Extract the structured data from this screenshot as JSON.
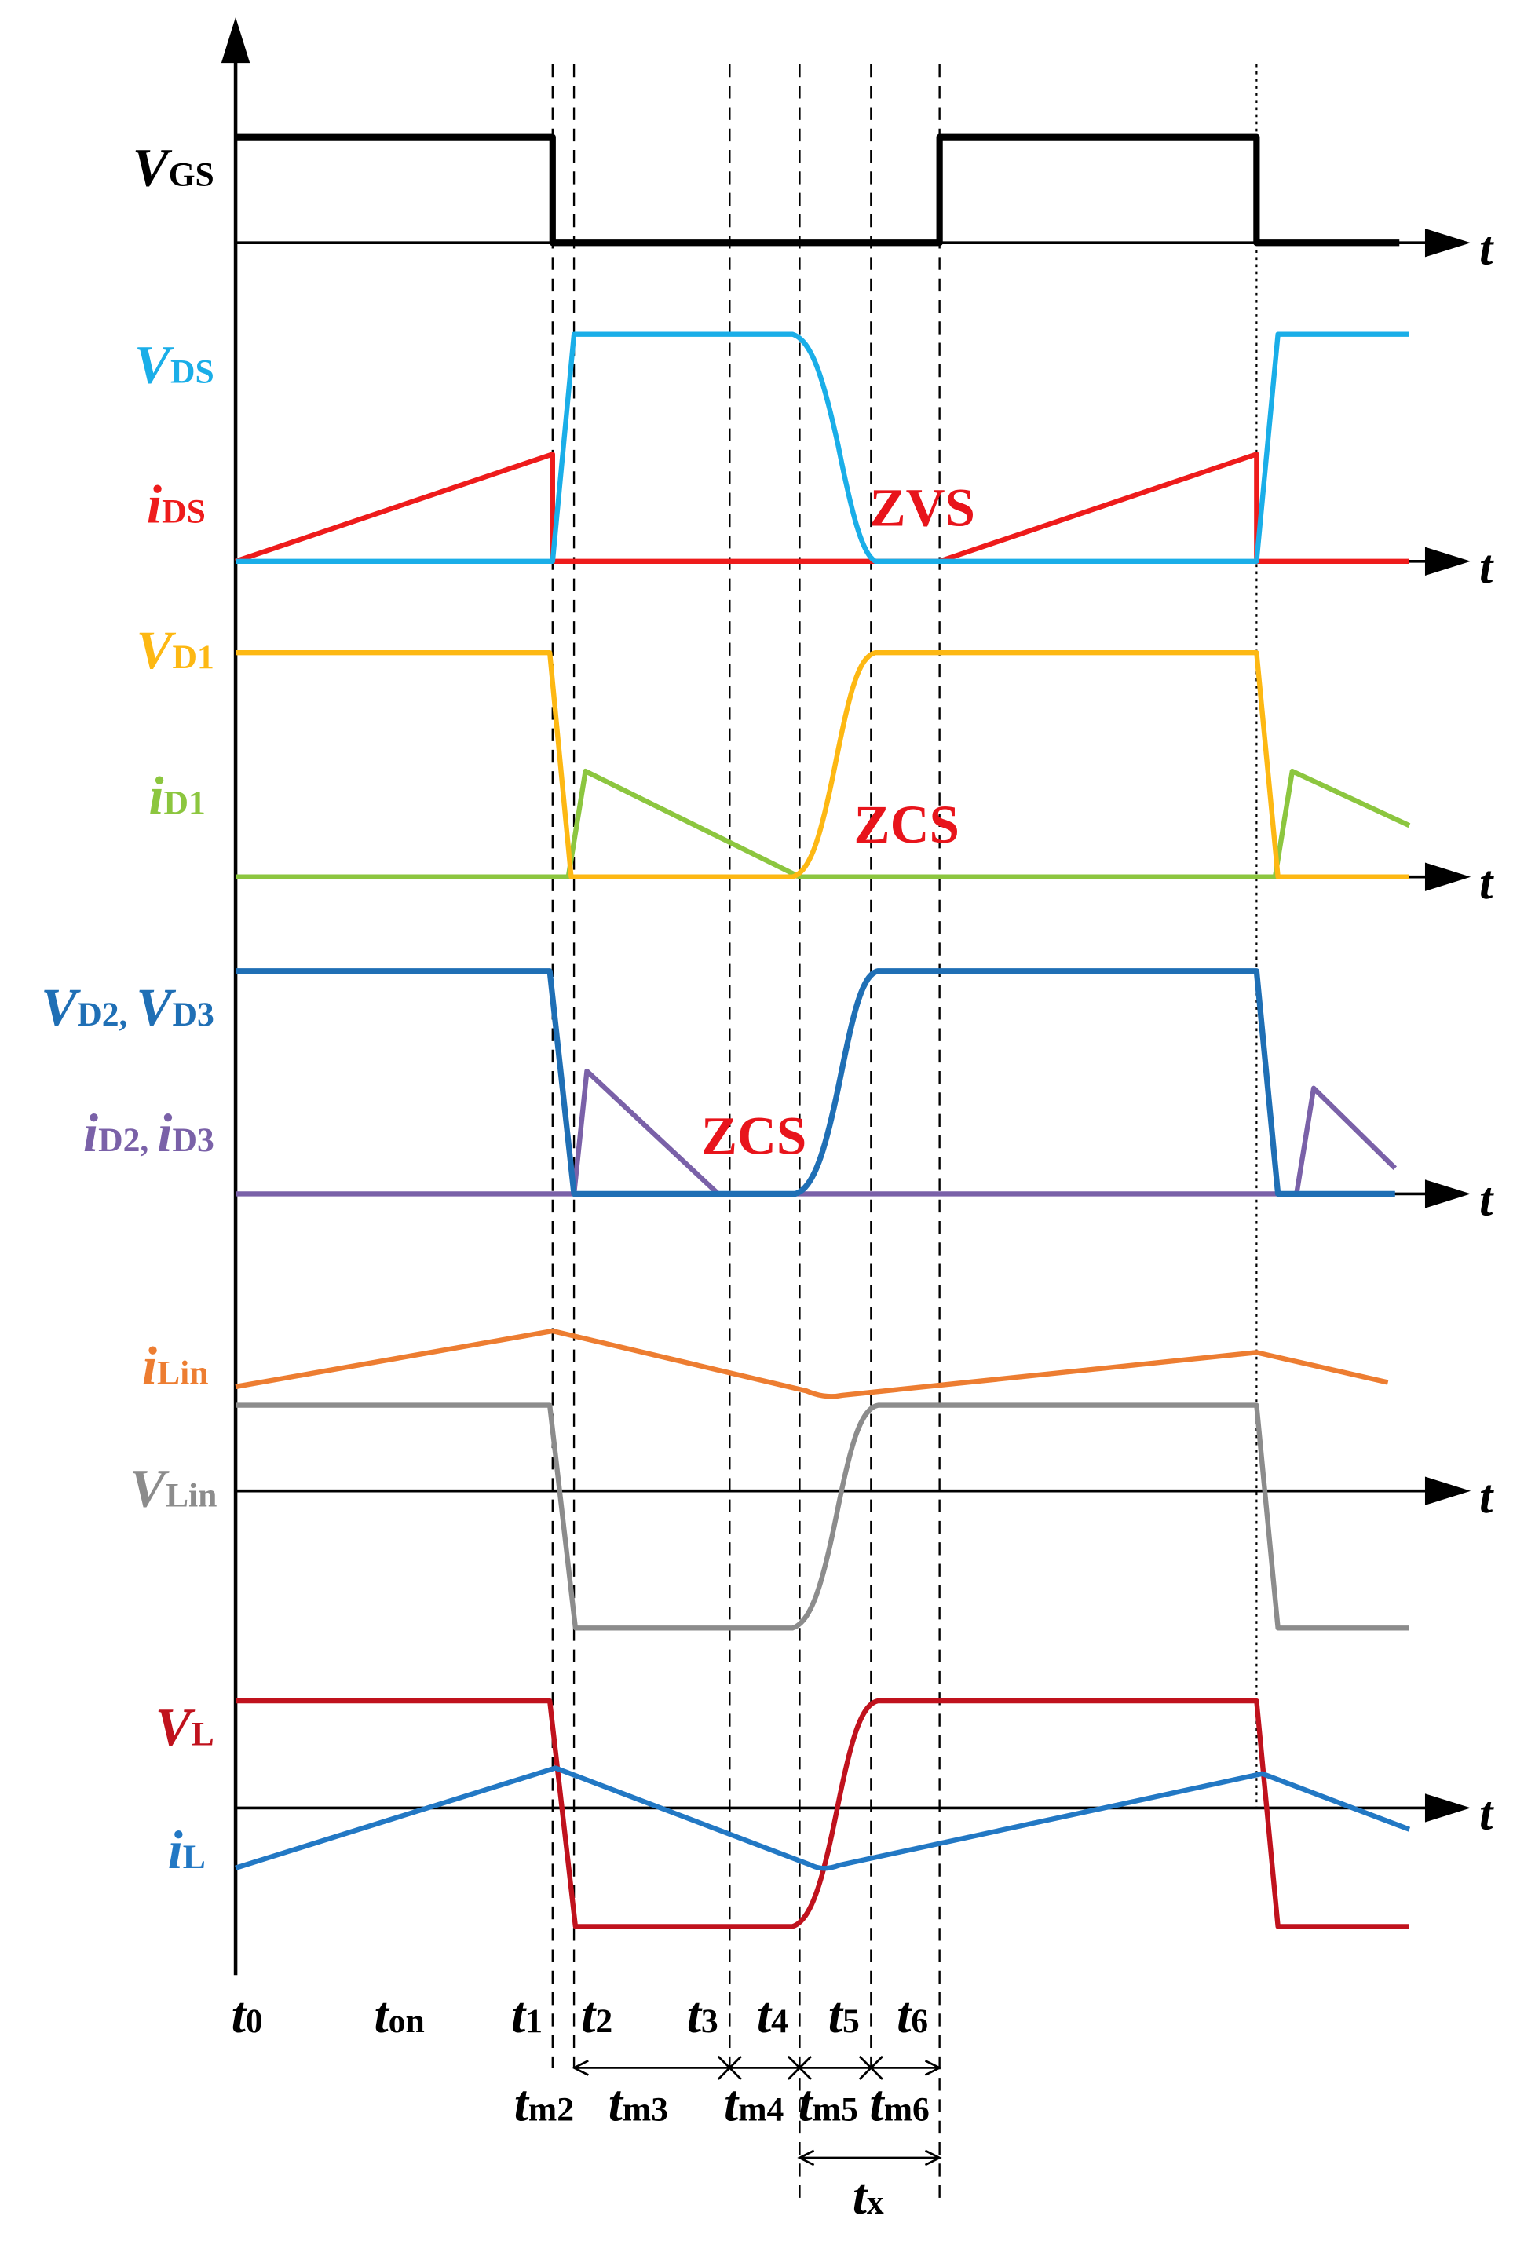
{
  "colors": {
    "axis": "#000000",
    "vgs": "#000000",
    "vds": "#1aaee8",
    "ids": "#ee1b1b",
    "vd1": "#fdb813",
    "id1": "#8cc63f",
    "vd23": "#1f6fb5",
    "id23": "#7a61a8",
    "ilin": "#ed7d31",
    "vlin": "#8c8c8c",
    "vl": "#c0121d",
    "il": "#2278c4",
    "annot": "#e8141b"
  },
  "axis_symbol": "t",
  "signals": {
    "vgs": {
      "main": "V",
      "sub": "GS"
    },
    "vds": {
      "main": "V",
      "sub": "DS"
    },
    "ids": {
      "main": "i",
      "sub": "DS"
    },
    "vd1": {
      "main": "V",
      "sub": "D1"
    },
    "id1": {
      "main": "i",
      "sub": "D1"
    },
    "vd23": {
      "main1": "V",
      "sub1": "D2,",
      "main2": "V",
      "sub2": "D3"
    },
    "id23": {
      "main1": "i",
      "sub1": "D2,",
      "main2": "i",
      "sub2": "D3"
    },
    "ilin": {
      "main": "i",
      "sub": "Lin"
    },
    "vlin": {
      "main": "V",
      "sub": "Lin"
    },
    "vl": {
      "main": "V",
      "sub": "L"
    },
    "il": {
      "main": "i",
      "sub": "L"
    }
  },
  "annotations": {
    "zvs": "ZVS",
    "zcs1": "ZCS",
    "zcs2": "ZCS"
  },
  "time_labels": {
    "t0": {
      "main": "t",
      "sub": "0"
    },
    "ton": {
      "main": "t",
      "sub": "on"
    },
    "t1": {
      "main": "t",
      "sub": "1"
    },
    "t2": {
      "main": "t",
      "sub": "2"
    },
    "t3": {
      "main": "t",
      "sub": "3"
    },
    "t4": {
      "main": "t",
      "sub": "4"
    },
    "t5": {
      "main": "t",
      "sub": "5"
    },
    "t6": {
      "main": "t",
      "sub": "6"
    }
  },
  "interval_labels": {
    "tm2": {
      "main": "t",
      "sub": "m2"
    },
    "tm3": {
      "main": "t",
      "sub": "m3"
    },
    "tm4": {
      "main": "t",
      "sub": "m4"
    },
    "tm5": {
      "main": "t",
      "sub": "m5"
    },
    "tm6": {
      "main": "t",
      "sub": "m6"
    },
    "tx": {
      "main": "t",
      "sub": "x"
    }
  }
}
